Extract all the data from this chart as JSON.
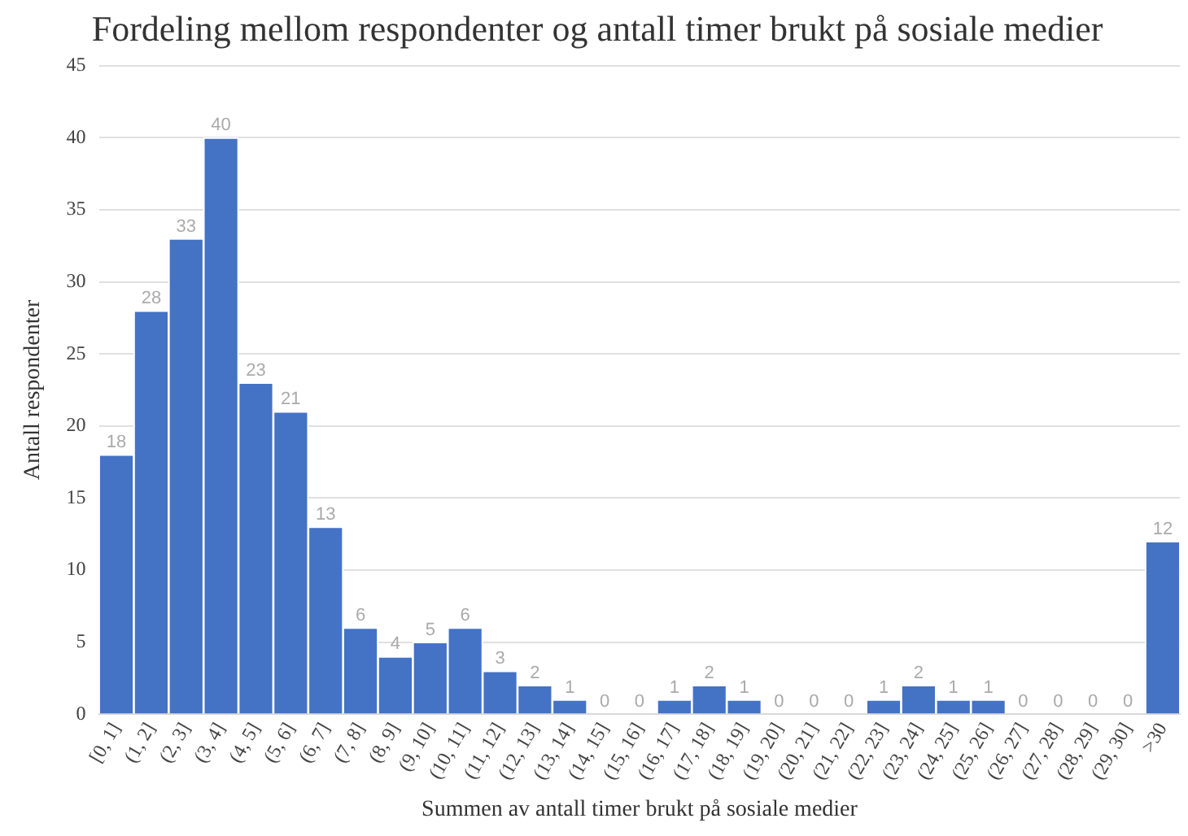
{
  "chart_data": {
    "type": "bar",
    "title": "Fordeling mellom respondenter og antall timer brukt på sosiale medier",
    "xlabel": "Summen av antall timer brukt på sosiale medier",
    "ylabel": "Antall respondenter",
    "categories": [
      "[0, 1]",
      "(1, 2]",
      "(2, 3]",
      "(3, 4]",
      "(4, 5]",
      "(5, 6]",
      "(6, 7]",
      "(7, 8]",
      "(8, 9]",
      "(9, 10]",
      "(10, 11]",
      "(11, 12]",
      "(12, 13]",
      "(13, 14]",
      "(14, 15]",
      "(15, 16]",
      "(16, 17]",
      "(17, 18]",
      "(18, 19]",
      "(19, 20]",
      "(20, 21]",
      "(21, 22]",
      "(22, 23]",
      "(23, 24]",
      "(24, 25]",
      "(25, 26]",
      "(26, 27]",
      "(27, 28]",
      "(28, 29]",
      "(29, 30]",
      ">30"
    ],
    "values": [
      18,
      28,
      33,
      40,
      23,
      21,
      13,
      6,
      4,
      5,
      6,
      3,
      2,
      1,
      0,
      0,
      1,
      2,
      1,
      0,
      0,
      0,
      1,
      2,
      1,
      1,
      0,
      0,
      0,
      0,
      12
    ],
    "color": "#4472c4",
    "ylim": [
      0,
      45
    ],
    "yticks": [
      0,
      5,
      10,
      15,
      20,
      25,
      30,
      35,
      40,
      45
    ],
    "grid": "y",
    "data_labels": true,
    "legend": false
  }
}
